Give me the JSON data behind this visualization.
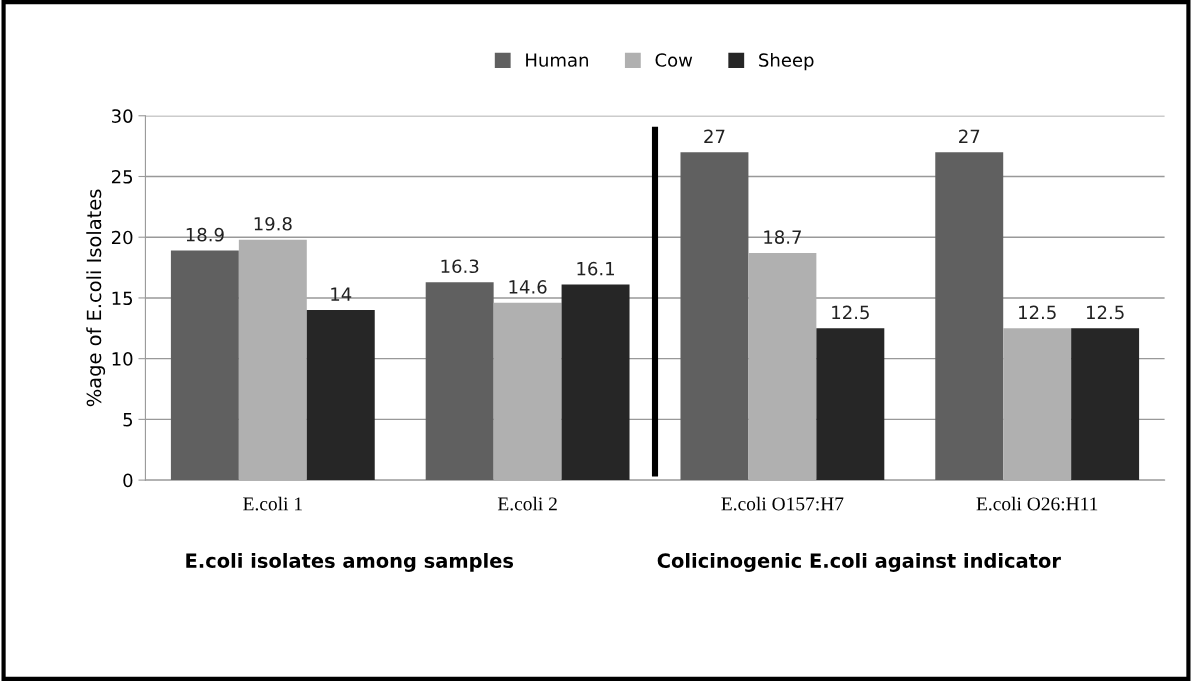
{
  "chart_data": {
    "type": "bar",
    "ylabel": "%age of E.coli Isolates",
    "categories": [
      "E.coli 1",
      "E.coli 2",
      "E.coli O157:H7",
      "E.coli O26:H11"
    ],
    "series": [
      {
        "name": "Human",
        "color": "#606060",
        "values": [
          18.9,
          16.3,
          27,
          27
        ]
      },
      {
        "name": "Cow",
        "color": "#b0b0b0",
        "values": [
          19.8,
          14.6,
          18.7,
          12.5
        ]
      },
      {
        "name": "Sheep",
        "color": "#262626",
        "values": [
          14,
          16.1,
          12.5,
          12.5
        ]
      }
    ],
    "ylim": [
      0,
      30
    ],
    "yticks": [
      0,
      5,
      10,
      15,
      20,
      25,
      30
    ],
    "grid": "y",
    "legend": "top",
    "data_labels": true,
    "annotations": [
      "E.coli isolates among samples",
      "Colicinogenic E.coli against indicator"
    ]
  }
}
